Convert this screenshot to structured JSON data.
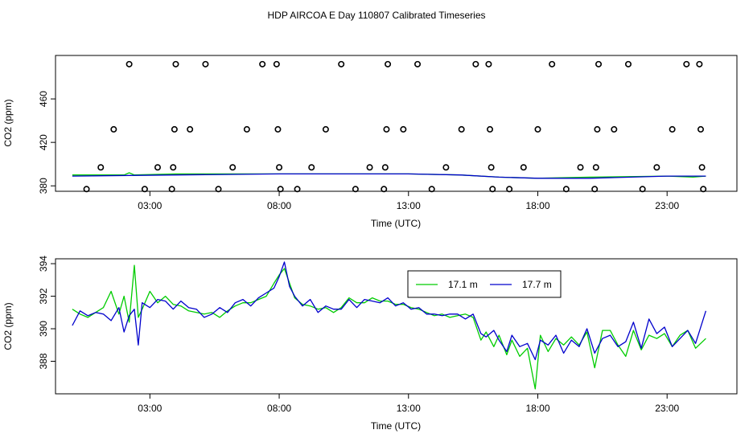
{
  "title": "HDP AIRCOA E  Day 110807  Calibrated Timeseries",
  "colors": {
    "green": "#00cc00",
    "blue": "#0000cc",
    "axis": "#000000"
  },
  "chart_data": [
    {
      "type": "scatter+line",
      "xlabel": "Time (UTC)",
      "ylabel": "CO2 (ppm)",
      "x_ticks": [
        {
          "value": 3,
          "label": "03:00"
        },
        {
          "value": 8,
          "label": "08:00"
        },
        {
          "value": 13,
          "label": "13:00"
        },
        {
          "value": 18,
          "label": "18:00"
        },
        {
          "value": 23,
          "label": "23:00"
        }
      ],
      "y_ticks": [
        380,
        420,
        460
      ],
      "xlim": [
        -0.65,
        25.7
      ],
      "ylim": [
        375,
        500
      ],
      "calibration_points": [
        {
          "x": 0.55,
          "y": 377
        },
        {
          "x": 1.1,
          "y": 397
        },
        {
          "x": 1.6,
          "y": 432
        },
        {
          "x": 2.2,
          "y": 492
        },
        {
          "x": 2.8,
          "y": 377
        },
        {
          "x": 3.3,
          "y": 397
        },
        {
          "x": 3.85,
          "y": 377
        },
        {
          "x": 3.9,
          "y": 397
        },
        {
          "x": 3.95,
          "y": 432
        },
        {
          "x": 4.0,
          "y": 492
        },
        {
          "x": 4.55,
          "y": 432
        },
        {
          "x": 5.15,
          "y": 492
        },
        {
          "x": 5.65,
          "y": 377
        },
        {
          "x": 6.2,
          "y": 397
        },
        {
          "x": 6.75,
          "y": 432
        },
        {
          "x": 7.35,
          "y": 492
        },
        {
          "x": 7.9,
          "y": 492
        },
        {
          "x": 7.95,
          "y": 432
        },
        {
          "x": 8.0,
          "y": 397
        },
        {
          "x": 8.05,
          "y": 377
        },
        {
          "x": 8.7,
          "y": 377
        },
        {
          "x": 9.25,
          "y": 397
        },
        {
          "x": 9.8,
          "y": 432
        },
        {
          "x": 10.4,
          "y": 492
        },
        {
          "x": 10.95,
          "y": 377
        },
        {
          "x": 11.5,
          "y": 397
        },
        {
          "x": 12.05,
          "y": 377
        },
        {
          "x": 12.1,
          "y": 397
        },
        {
          "x": 12.15,
          "y": 432
        },
        {
          "x": 12.2,
          "y": 492
        },
        {
          "x": 12.8,
          "y": 432
        },
        {
          "x": 13.35,
          "y": 492
        },
        {
          "x": 13.9,
          "y": 377
        },
        {
          "x": 14.45,
          "y": 397
        },
        {
          "x": 15.05,
          "y": 432
        },
        {
          "x": 15.6,
          "y": 492
        },
        {
          "x": 16.1,
          "y": 492
        },
        {
          "x": 16.15,
          "y": 432
        },
        {
          "x": 16.2,
          "y": 397
        },
        {
          "x": 16.25,
          "y": 377
        },
        {
          "x": 16.9,
          "y": 377
        },
        {
          "x": 17.45,
          "y": 397
        },
        {
          "x": 18.0,
          "y": 432
        },
        {
          "x": 18.55,
          "y": 492
        },
        {
          "x": 19.1,
          "y": 377
        },
        {
          "x": 19.65,
          "y": 397
        },
        {
          "x": 20.2,
          "y": 377
        },
        {
          "x": 20.25,
          "y": 397
        },
        {
          "x": 20.3,
          "y": 432
        },
        {
          "x": 20.35,
          "y": 492
        },
        {
          "x": 20.95,
          "y": 432
        },
        {
          "x": 21.5,
          "y": 492
        },
        {
          "x": 22.05,
          "y": 377
        },
        {
          "x": 22.6,
          "y": 397
        },
        {
          "x": 23.2,
          "y": 432
        },
        {
          "x": 23.75,
          "y": 492
        },
        {
          "x": 24.25,
          "y": 492
        },
        {
          "x": 24.3,
          "y": 432
        },
        {
          "x": 24.35,
          "y": 397
        },
        {
          "x": 24.4,
          "y": 377
        }
      ],
      "series": [
        {
          "color": "green",
          "x": [
            0.0,
            2.0,
            2.2,
            2.4,
            4.0,
            8.0,
            13.0,
            15.0,
            16.5,
            18.0,
            20.0,
            23.0,
            24.0,
            24.5
          ],
          "y": [
            390,
            390,
            392,
            390,
            391,
            391,
            391,
            390,
            388,
            387,
            388,
            389,
            388,
            389
          ]
        },
        {
          "color": "blue",
          "x": [
            0.0,
            4.0,
            8.0,
            13.0,
            15.0,
            16.5,
            18.0,
            20.0,
            23.0,
            24.5
          ],
          "y": [
            389,
            390,
            391,
            391,
            390,
            388,
            387,
            387,
            389,
            389
          ]
        }
      ]
    },
    {
      "type": "line",
      "xlabel": "Time (UTC)",
      "ylabel": "CO2 (ppm)",
      "x_ticks": [
        {
          "value": 3,
          "label": "03:00"
        },
        {
          "value": 8,
          "label": "08:00"
        },
        {
          "value": 13,
          "label": "13:00"
        },
        {
          "value": 18,
          "label": "18:00"
        },
        {
          "value": 23,
          "label": "23:00"
        }
      ],
      "y_ticks": [
        388,
        390,
        392,
        394
      ],
      "xlim": [
        -0.65,
        25.7
      ],
      "ylim": [
        386.0,
        394.3
      ],
      "legend": {
        "placement": "top-center"
      },
      "series": [
        {
          "name": "17.1 m",
          "color": "green",
          "x": [
            0.0,
            0.3,
            0.6,
            0.9,
            1.2,
            1.5,
            1.8,
            2.0,
            2.2,
            2.4,
            2.55,
            2.7,
            3.0,
            3.3,
            3.6,
            3.9,
            4.2,
            4.5,
            4.8,
            5.1,
            5.4,
            5.7,
            6.0,
            6.3,
            6.6,
            6.9,
            7.2,
            7.5,
            7.8,
            8.0,
            8.2,
            8.4,
            8.6,
            8.9,
            9.2,
            9.5,
            9.8,
            10.1,
            10.4,
            10.7,
            11.0,
            11.3,
            11.6,
            11.9,
            12.2,
            12.5,
            12.8,
            13.1,
            13.4,
            13.7,
            14.0,
            14.3,
            14.6,
            14.9,
            15.2,
            15.5,
            15.8,
            16.0,
            16.3,
            16.5,
            16.8,
            17.0,
            17.3,
            17.6,
            17.9,
            18.1,
            18.4,
            18.7,
            19.0,
            19.3,
            19.6,
            19.9,
            20.2,
            20.5,
            20.8,
            21.1,
            21.4,
            21.7,
            22.0,
            22.3,
            22.6,
            22.9,
            23.2,
            23.5,
            23.8,
            24.1,
            24.5
          ],
          "y": [
            391.2,
            390.9,
            390.7,
            391.0,
            391.3,
            392.3,
            390.9,
            392.0,
            390.4,
            393.9,
            390.7,
            391.2,
            392.3,
            391.6,
            392.0,
            391.5,
            391.4,
            391.1,
            391.0,
            390.9,
            391.0,
            390.7,
            391.1,
            391.4,
            391.6,
            391.6,
            391.8,
            392.0,
            392.8,
            393.3,
            393.7,
            392.8,
            391.9,
            391.5,
            391.4,
            391.2,
            391.3,
            391.0,
            391.3,
            391.9,
            391.6,
            391.6,
            391.9,
            391.7,
            391.7,
            391.5,
            391.5,
            391.3,
            391.2,
            391.0,
            390.8,
            390.9,
            390.7,
            390.8,
            390.9,
            390.7,
            389.3,
            389.8,
            388.9,
            389.6,
            388.4,
            389.3,
            388.3,
            388.8,
            386.3,
            389.6,
            388.6,
            389.4,
            389.0,
            389.5,
            389.0,
            389.8,
            387.6,
            389.9,
            389.9,
            389.0,
            388.3,
            389.9,
            388.7,
            389.6,
            389.4,
            389.7,
            388.9,
            389.6,
            389.9,
            388.8,
            389.4
          ]
        },
        {
          "name": "17.7 m",
          "color": "blue",
          "x": [
            0.0,
            0.3,
            0.6,
            0.9,
            1.2,
            1.5,
            1.8,
            2.0,
            2.2,
            2.4,
            2.55,
            2.7,
            3.0,
            3.3,
            3.6,
            3.9,
            4.2,
            4.5,
            4.8,
            5.1,
            5.4,
            5.7,
            6.0,
            6.3,
            6.6,
            6.9,
            7.2,
            7.5,
            7.8,
            8.0,
            8.2,
            8.4,
            8.6,
            8.9,
            9.2,
            9.5,
            9.8,
            10.1,
            10.4,
            10.7,
            11.0,
            11.3,
            11.6,
            11.9,
            12.2,
            12.5,
            12.8,
            13.1,
            13.4,
            13.7,
            14.0,
            14.3,
            14.6,
            14.9,
            15.2,
            15.5,
            15.8,
            16.0,
            16.3,
            16.5,
            16.8,
            17.0,
            17.3,
            17.6,
            17.9,
            18.1,
            18.4,
            18.7,
            19.0,
            19.3,
            19.6,
            19.9,
            20.2,
            20.5,
            20.8,
            21.1,
            21.4,
            21.7,
            22.0,
            22.3,
            22.6,
            22.9,
            23.2,
            23.5,
            23.8,
            24.1,
            24.5
          ],
          "y": [
            390.2,
            391.1,
            390.8,
            391.0,
            390.9,
            390.5,
            391.3,
            389.8,
            390.8,
            391.2,
            389.0,
            391.6,
            391.3,
            391.8,
            391.7,
            391.2,
            391.7,
            391.3,
            391.2,
            390.7,
            390.9,
            391.3,
            391.0,
            391.6,
            391.8,
            391.4,
            391.9,
            392.2,
            392.5,
            393.2,
            394.1,
            392.6,
            392.0,
            391.4,
            391.8,
            391.0,
            391.4,
            391.2,
            391.2,
            391.8,
            391.3,
            391.8,
            391.7,
            391.6,
            391.9,
            391.4,
            391.6,
            391.2,
            391.3,
            390.9,
            390.9,
            390.8,
            390.9,
            390.9,
            390.6,
            390.9,
            389.7,
            389.5,
            389.9,
            389.3,
            388.6,
            389.6,
            388.9,
            389.1,
            388.1,
            389.3,
            389.0,
            389.6,
            388.5,
            389.3,
            388.9,
            390.0,
            388.5,
            389.4,
            389.6,
            388.9,
            389.2,
            390.4,
            388.8,
            390.6,
            389.7,
            390.1,
            388.9,
            389.4,
            389.9,
            389.1,
            391.1
          ]
        }
      ]
    }
  ]
}
